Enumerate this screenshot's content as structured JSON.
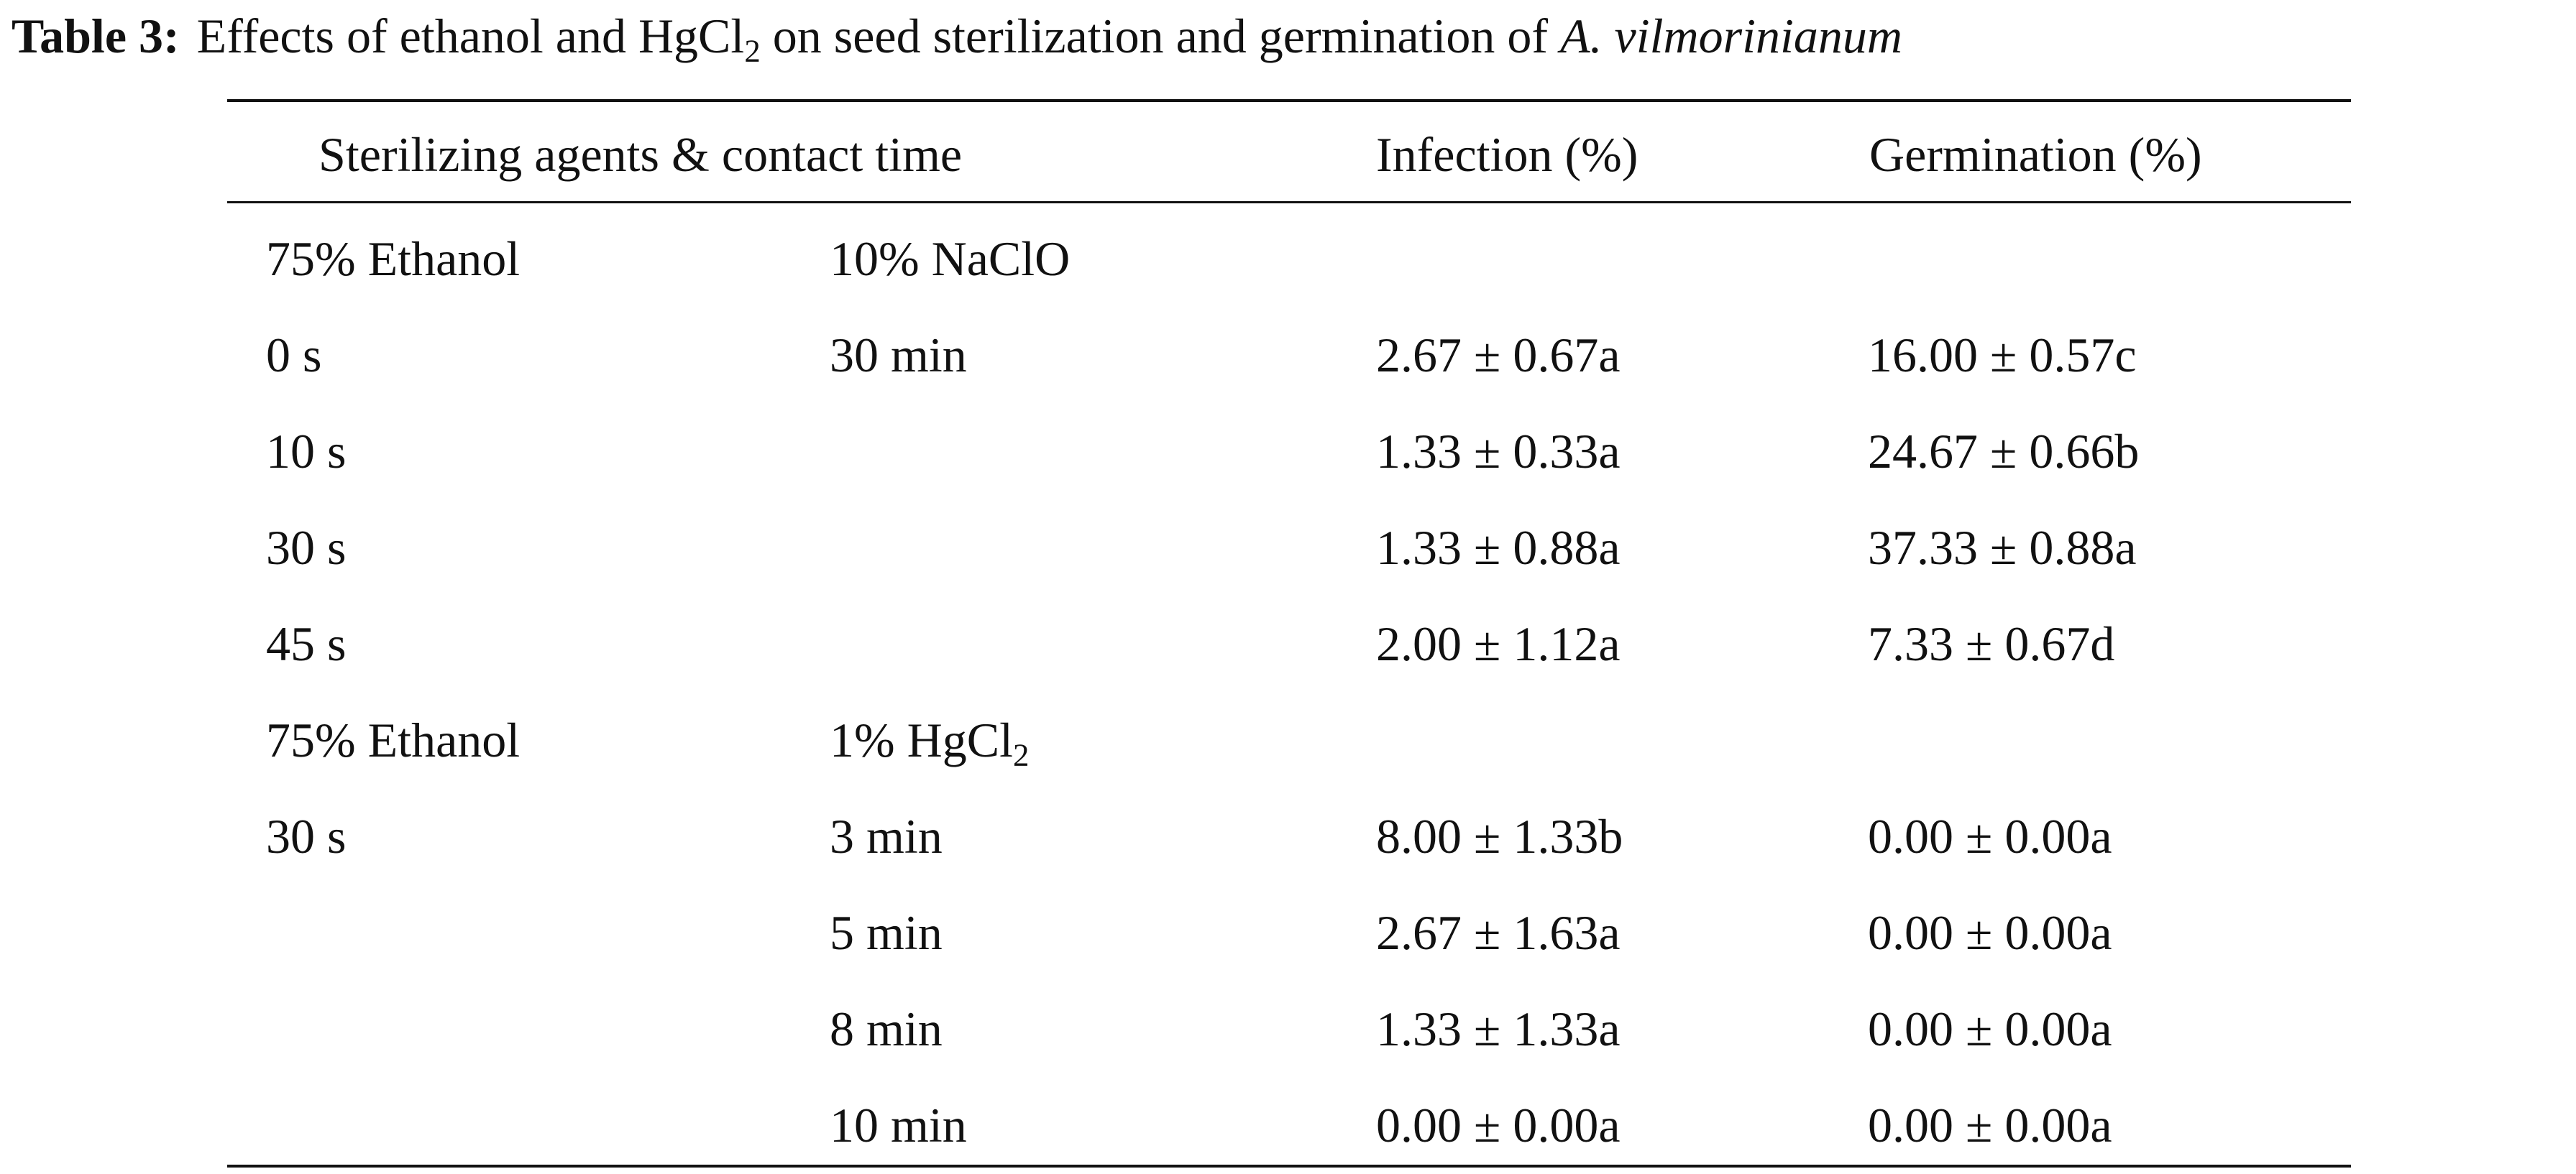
{
  "caption": {
    "label": "Table 3:",
    "text_before": "Effects of ethanol and HgCl",
    "subscript": "2",
    "text_after": " on seed sterilization and germination of ",
    "species": "A. vilmorinianum"
  },
  "table": {
    "headers": {
      "agents": "Sterilizing agents & contact time",
      "infection": "Infection (%)",
      "germination": "Germination (%)"
    },
    "rows": [
      {
        "ethanol": "75% Ethanol",
        "agent": "10% NaClO",
        "infection": "",
        "germination": ""
      },
      {
        "ethanol": "0 s",
        "agent": "30 min",
        "infection": "2.67 ± 0.67a",
        "germination": "16.00 ± 0.57c"
      },
      {
        "ethanol": "10 s",
        "agent": "",
        "infection": "1.33 ± 0.33a",
        "germination": "24.67 ± 0.66b"
      },
      {
        "ethanol": "30 s",
        "agent": "",
        "infection": "1.33 ± 0.88a",
        "germination": "37.33 ± 0.88a"
      },
      {
        "ethanol": "45 s",
        "agent": "",
        "infection": "2.00 ± 1.12a",
        "germination": "7.33 ± 0.67d"
      },
      {
        "ethanol": "75% Ethanol",
        "agent": "1% HgCl",
        "agent_sub": "2",
        "infection": "",
        "germination": ""
      },
      {
        "ethanol": "30 s",
        "agent": "3 min",
        "infection": "8.00 ± 1.33b",
        "germination": "0.00 ± 0.00a"
      },
      {
        "ethanol": "",
        "agent": "5 min",
        "infection": "2.67 ± 1.63a",
        "germination": "0.00 ± 0.00a"
      },
      {
        "ethanol": "",
        "agent": "8 min",
        "infection": "1.33 ± 1.33a",
        "germination": "0.00 ± 0.00a"
      },
      {
        "ethanol": "",
        "agent": "10 min",
        "infection": "0.00 ± 0.00a",
        "germination": "0.00 ± 0.00a"
      }
    ]
  }
}
